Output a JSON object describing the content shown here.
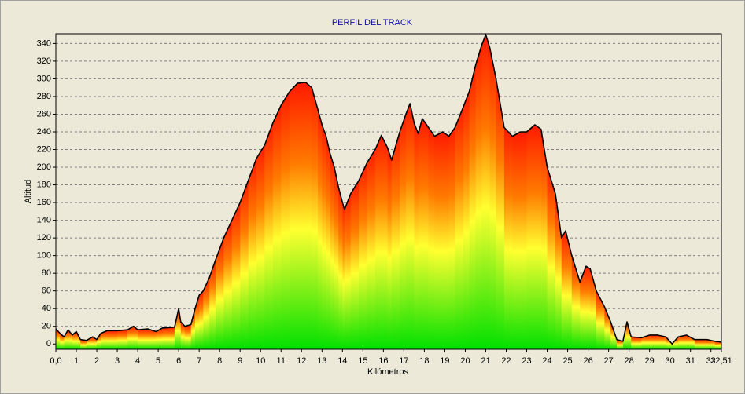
{
  "chart_data": {
    "type": "area",
    "title": "PERFIL DEL TRACK",
    "x_label": "Kilómetros",
    "y_label": "Altitud",
    "xlim": [
      0,
      32.51
    ],
    "ylim": [
      -6,
      351
    ],
    "grid": true,
    "xticks": [
      {
        "value": 0,
        "label": "0,0"
      },
      1,
      2,
      3,
      4,
      5,
      6,
      7,
      8,
      9,
      10,
      11,
      12,
      13,
      14,
      15,
      16,
      17,
      18,
      19,
      20,
      21,
      22,
      23,
      24,
      25,
      26,
      27,
      28,
      29,
      30,
      31,
      32,
      {
        "value": 32.51,
        "label": "32,51"
      }
    ],
    "yticks": [
      0,
      20,
      40,
      60,
      80,
      100,
      120,
      140,
      160,
      180,
      200,
      220,
      240,
      260,
      280,
      300,
      320,
      340
    ],
    "x": [
      0,
      0.2,
      0.4,
      0.6,
      0.8,
      1.0,
      1.2,
      1.5,
      1.8,
      2.0,
      2.2,
      2.5,
      3,
      3.5,
      3.8,
      4.0,
      4.5,
      4.9,
      5.2,
      5.8,
      6.0,
      6.1,
      6.3,
      6.6,
      6.8,
      7.0,
      7.2,
      7.5,
      7.8,
      8.2,
      8.6,
      9.0,
      9.4,
      9.8,
      10.2,
      10.6,
      11.0,
      11.4,
      11.8,
      12.2,
      12.5,
      12.8,
      13.0,
      13.2,
      13.4,
      13.6,
      13.8,
      14.0,
      14.1,
      14.4,
      14.8,
      15.2,
      15.6,
      15.9,
      16.2,
      16.4,
      16.8,
      17.1,
      17.3,
      17.5,
      17.7,
      17.9,
      18.2,
      18.5,
      18.9,
      19.2,
      19.5,
      19.9,
      20.2,
      20.5,
      20.8,
      21.0,
      21.2,
      21.5,
      21.9,
      22.3,
      22.7,
      23.0,
      23.4,
      23.7,
      24.0,
      24.4,
      24.7,
      24.9,
      25.2,
      25.6,
      25.9,
      26.1,
      26.4,
      26.8,
      27.1,
      27.4,
      27.7,
      27.9,
      28.1,
      28.6,
      29.0,
      29.4,
      29.8,
      30.1,
      30.4,
      30.8,
      31.2,
      31.8,
      32.2,
      32.51
    ],
    "values": [
      17,
      12,
      8,
      16,
      10,
      14,
      5,
      4,
      8,
      5,
      12,
      15,
      15,
      16,
      20,
      16,
      17,
      14,
      18,
      19,
      40,
      25,
      20,
      22,
      40,
      55,
      60,
      75,
      95,
      120,
      140,
      160,
      185,
      210,
      225,
      250,
      270,
      285,
      295,
      296,
      290,
      265,
      248,
      235,
      215,
      200,
      178,
      160,
      152,
      170,
      185,
      205,
      220,
      236,
      222,
      208,
      240,
      260,
      272,
      250,
      238,
      255,
      245,
      235,
      240,
      235,
      245,
      268,
      286,
      315,
      338,
      350,
      335,
      300,
      245,
      235,
      240,
      240,
      248,
      243,
      200,
      170,
      120,
      128,
      100,
      70,
      88,
      85,
      60,
      42,
      25,
      5,
      3,
      25,
      8,
      7,
      10,
      10,
      8,
      0,
      8,
      10,
      5,
      5,
      3,
      2
    ]
  }
}
